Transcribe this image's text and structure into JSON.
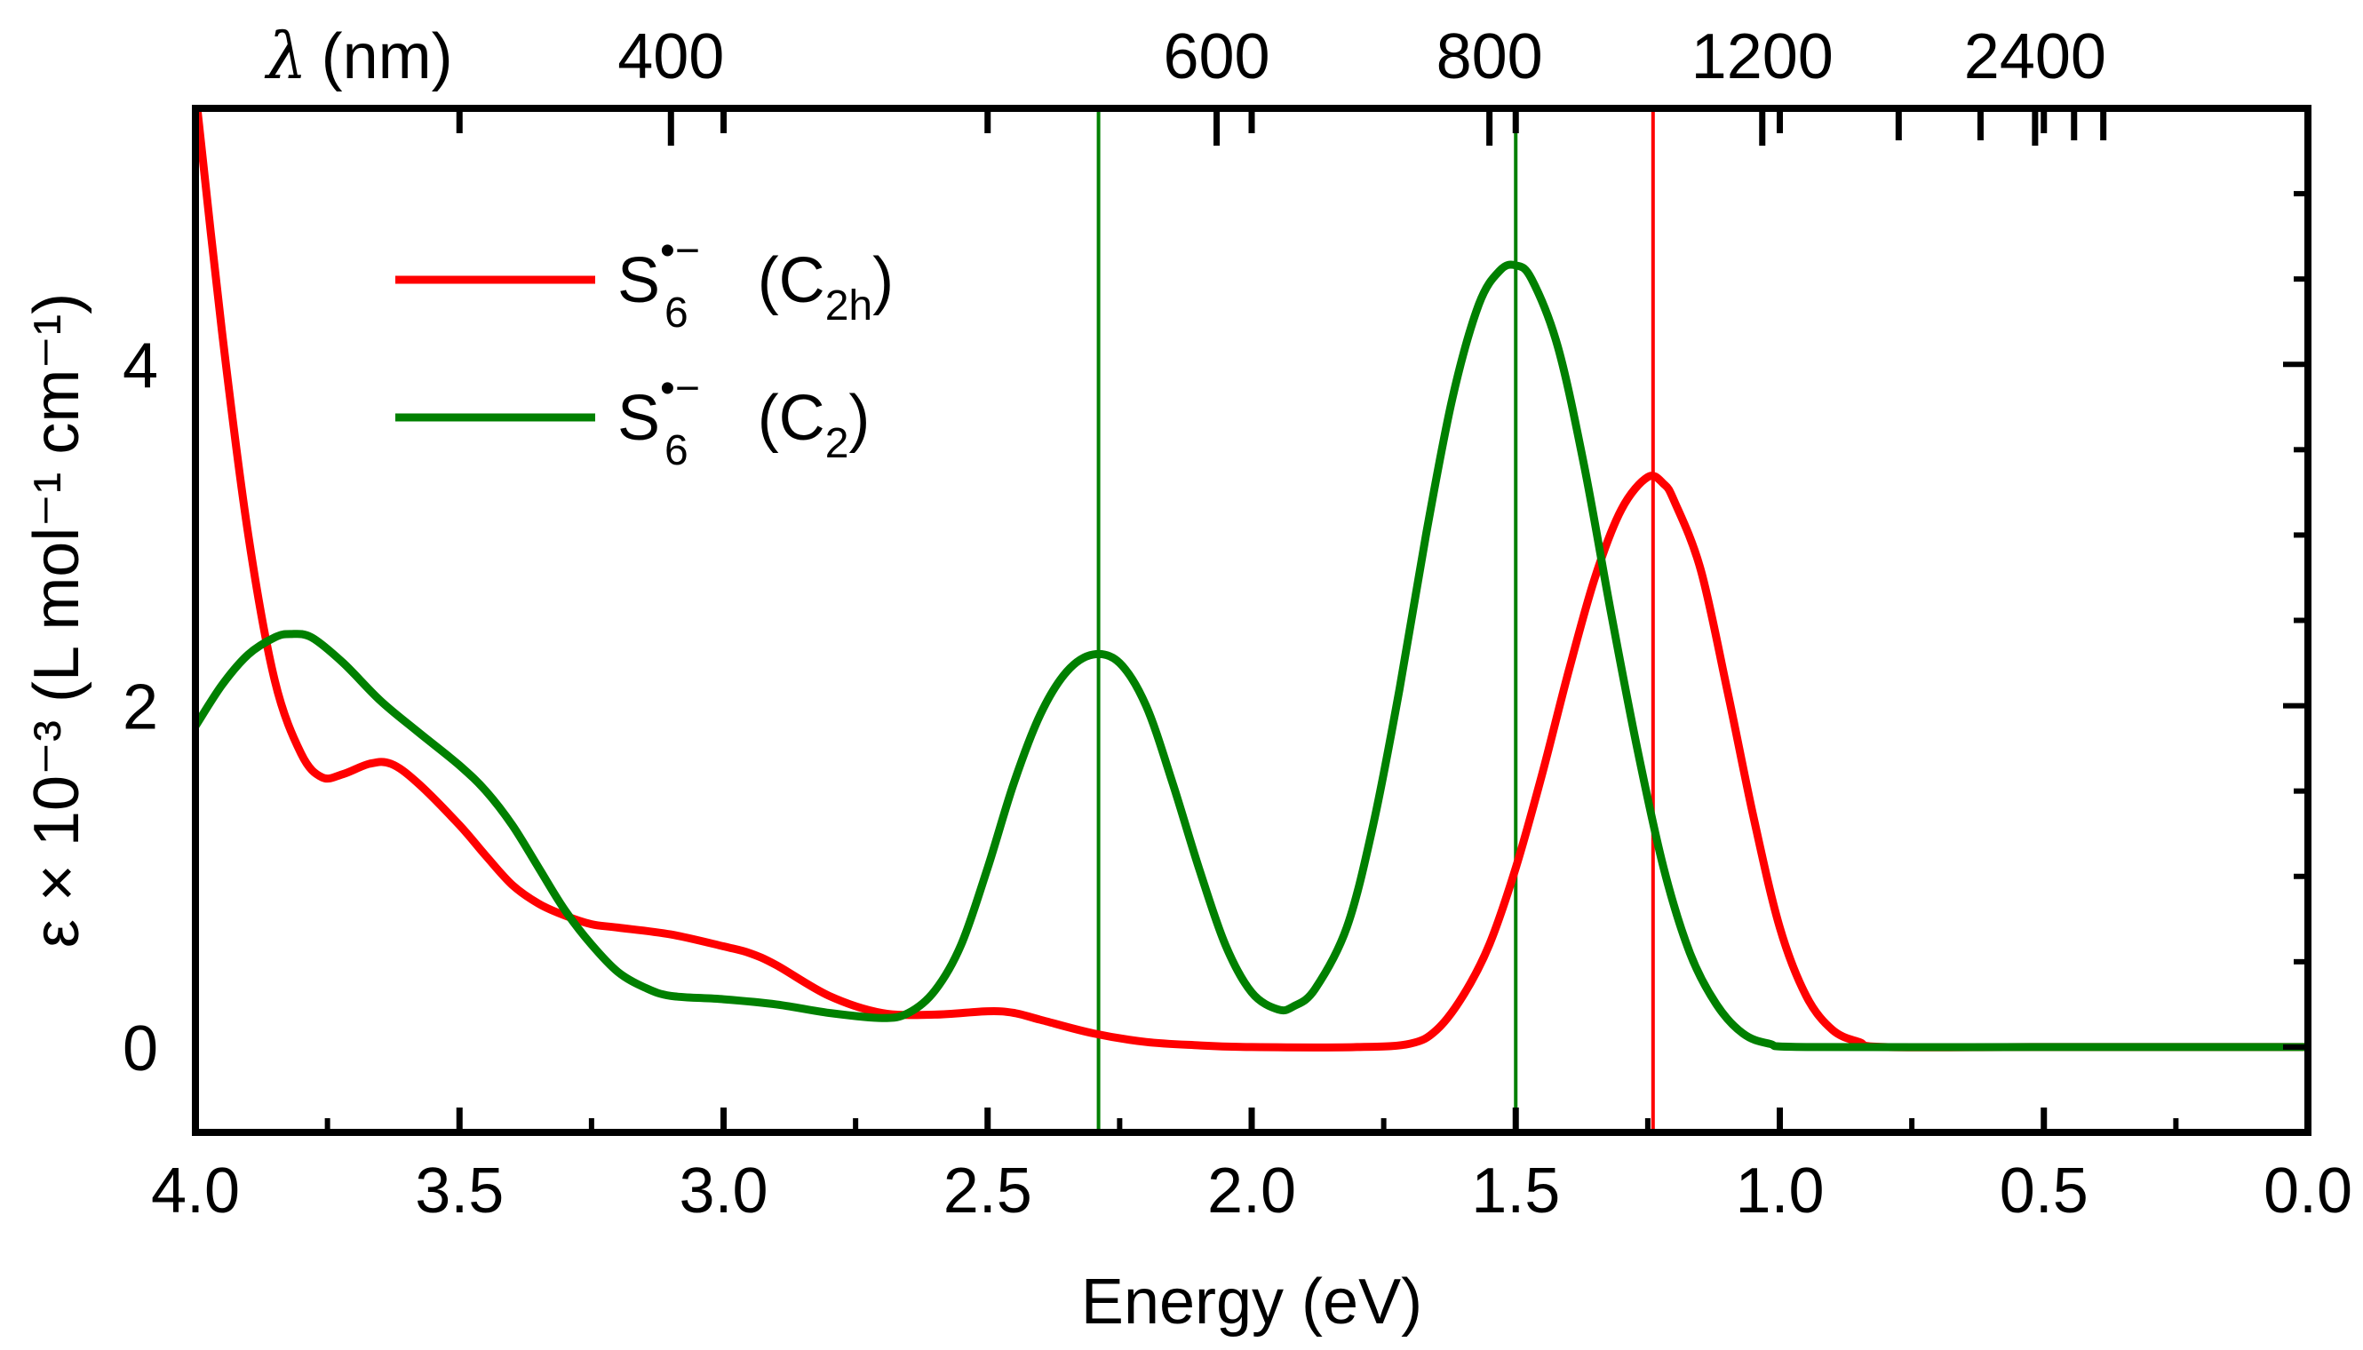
{
  "chart_data": {
    "type": "line",
    "title": "",
    "xlabel": "Energy (eV)",
    "ylabel": "ε × 10⁻³ (L mol⁻¹ cm⁻¹)",
    "xlim": [
      4.0,
      0.0
    ],
    "ylim": [
      -0.5,
      5.5
    ],
    "xticks": [
      {
        "value": 4.0,
        "label": "4.0"
      },
      {
        "value": 3.5,
        "label": "3.5"
      },
      {
        "value": 3.0,
        "label": "3.0"
      },
      {
        "value": 2.5,
        "label": "2.5"
      },
      {
        "value": 2.0,
        "label": "2.0"
      },
      {
        "value": 1.5,
        "label": "1.5"
      },
      {
        "value": 1.0,
        "label": "1.0"
      },
      {
        "value": 0.5,
        "label": "0.5"
      },
      {
        "value": 0.0,
        "label": "0.0"
      }
    ],
    "yticks": [
      {
        "value": 0,
        "label": "0"
      },
      {
        "value": 2,
        "label": "2"
      },
      {
        "value": 4,
        "label": "4"
      }
    ],
    "top_axis": {
      "label_symbol": "λ",
      "label_unit": "(nm)",
      "labeled_ticks": [
        {
          "nm": 400,
          "label": "400"
        },
        {
          "nm": 600,
          "label": "600"
        },
        {
          "nm": 800,
          "label": "800"
        },
        {
          "nm": 1200,
          "label": "1200"
        },
        {
          "nm": 2400,
          "label": "2400"
        }
      ],
      "minor_ticks_nm": [
        1600,
        2000,
        2800,
        3200
      ]
    },
    "series": [
      {
        "name": "S6•− (C2h)",
        "legend": {
          "base": "S",
          "sub": "6",
          "sup": "•−",
          "open": " (C",
          "group_sub": "2h",
          "close": ")"
        },
        "color": "#ff0000",
        "vline_energy": 1.24,
        "points": [
          [
            4.0,
            5.6
          ],
          [
            3.95,
            4.2
          ],
          [
            3.9,
            3.0
          ],
          [
            3.85,
            2.15
          ],
          [
            3.8,
            1.72
          ],
          [
            3.76,
            1.58
          ],
          [
            3.72,
            1.6
          ],
          [
            3.67,
            1.66
          ],
          [
            3.63,
            1.66
          ],
          [
            3.58,
            1.55
          ],
          [
            3.5,
            1.3
          ],
          [
            3.45,
            1.12
          ],
          [
            3.4,
            0.95
          ],
          [
            3.35,
            0.84
          ],
          [
            3.3,
            0.77
          ],
          [
            3.25,
            0.72
          ],
          [
            3.2,
            0.7
          ],
          [
            3.1,
            0.66
          ],
          [
            3.0,
            0.59
          ],
          [
            2.95,
            0.55
          ],
          [
            2.9,
            0.48
          ],
          [
            2.8,
            0.3
          ],
          [
            2.7,
            0.2
          ],
          [
            2.6,
            0.19
          ],
          [
            2.5,
            0.21
          ],
          [
            2.45,
            0.2
          ],
          [
            2.4,
            0.16
          ],
          [
            2.3,
            0.08
          ],
          [
            2.2,
            0.03
          ],
          [
            2.1,
            0.01
          ],
          [
            2.0,
            0.0
          ],
          [
            1.8,
            0.0
          ],
          [
            1.7,
            0.02
          ],
          [
            1.65,
            0.1
          ],
          [
            1.6,
            0.3
          ],
          [
            1.55,
            0.6
          ],
          [
            1.5,
            1.05
          ],
          [
            1.45,
            1.6
          ],
          [
            1.4,
            2.2
          ],
          [
            1.35,
            2.75
          ],
          [
            1.3,
            3.15
          ],
          [
            1.25,
            3.34
          ],
          [
            1.22,
            3.3
          ],
          [
            1.2,
            3.2
          ],
          [
            1.15,
            2.8
          ],
          [
            1.1,
            2.1
          ],
          [
            1.05,
            1.35
          ],
          [
            1.0,
            0.7
          ],
          [
            0.95,
            0.3
          ],
          [
            0.9,
            0.1
          ],
          [
            0.85,
            0.03
          ],
          [
            0.8,
            0.0
          ],
          [
            0.5,
            0.0
          ],
          [
            0.0,
            0.0
          ]
        ]
      },
      {
        "name": "S6•− (C2)",
        "legend": {
          "base": "S",
          "sub": "6",
          "sup": "•−",
          "open": " (C",
          "group_sub": "2",
          "close": ")"
        },
        "color": "#008000",
        "vline_energy": 1.5,
        "vline_energy_2": 2.29,
        "points": [
          [
            4.0,
            1.88
          ],
          [
            3.95,
            2.12
          ],
          [
            3.9,
            2.3
          ],
          [
            3.85,
            2.4
          ],
          [
            3.82,
            2.42
          ],
          [
            3.78,
            2.4
          ],
          [
            3.72,
            2.25
          ],
          [
            3.65,
            2.03
          ],
          [
            3.58,
            1.85
          ],
          [
            3.5,
            1.65
          ],
          [
            3.45,
            1.5
          ],
          [
            3.4,
            1.3
          ],
          [
            3.35,
            1.05
          ],
          [
            3.3,
            0.8
          ],
          [
            3.25,
            0.6
          ],
          [
            3.2,
            0.44
          ],
          [
            3.15,
            0.35
          ],
          [
            3.1,
            0.3
          ],
          [
            3.0,
            0.28
          ],
          [
            2.9,
            0.25
          ],
          [
            2.8,
            0.2
          ],
          [
            2.7,
            0.17
          ],
          [
            2.65,
            0.2
          ],
          [
            2.6,
            0.33
          ],
          [
            2.55,
            0.6
          ],
          [
            2.5,
            1.05
          ],
          [
            2.45,
            1.55
          ],
          [
            2.4,
            1.95
          ],
          [
            2.35,
            2.2
          ],
          [
            2.3,
            2.3
          ],
          [
            2.25,
            2.25
          ],
          [
            2.2,
            2.0
          ],
          [
            2.15,
            1.55
          ],
          [
            2.1,
            1.05
          ],
          [
            2.05,
            0.6
          ],
          [
            2.0,
            0.32
          ],
          [
            1.95,
            0.22
          ],
          [
            1.92,
            0.24
          ],
          [
            1.88,
            0.34
          ],
          [
            1.82,
            0.7
          ],
          [
            1.77,
            1.3
          ],
          [
            1.72,
            2.1
          ],
          [
            1.67,
            3.0
          ],
          [
            1.62,
            3.8
          ],
          [
            1.57,
            4.35
          ],
          [
            1.53,
            4.55
          ],
          [
            1.5,
            4.58
          ],
          [
            1.47,
            4.5
          ],
          [
            1.42,
            4.1
          ],
          [
            1.37,
            3.4
          ],
          [
            1.32,
            2.55
          ],
          [
            1.27,
            1.75
          ],
          [
            1.22,
            1.05
          ],
          [
            1.17,
            0.55
          ],
          [
            1.12,
            0.25
          ],
          [
            1.07,
            0.08
          ],
          [
            1.02,
            0.02
          ],
          [
            0.95,
            0.0
          ],
          [
            0.5,
            0.0
          ],
          [
            0.0,
            0.0
          ]
        ]
      }
    ]
  }
}
